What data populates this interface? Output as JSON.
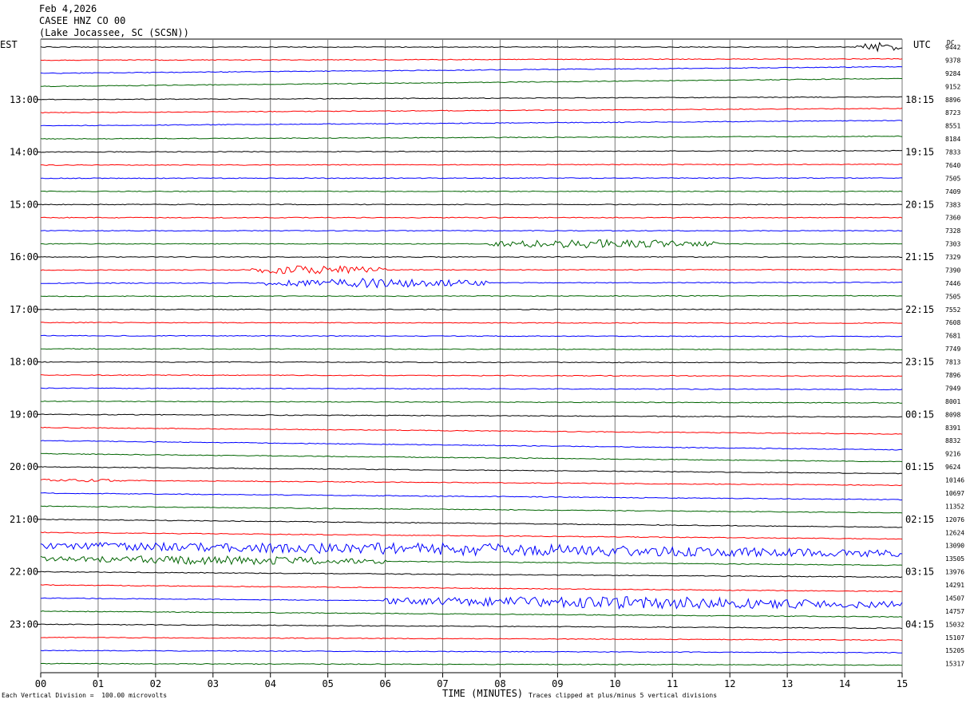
{
  "header": {
    "date": "Feb 4,2026",
    "station": "CASEE HNZ CO 00",
    "location": "(Lake Jocassee, SC (SCSN))"
  },
  "labels": {
    "left_timezone": "EST",
    "right_timezone": "UTC",
    "dc_label": "DC",
    "xlabel": "TIME (MINUTES)",
    "division_note": "Each Vertical Division =  100.00 microvolts",
    "clip_note": "Traces clipped at plus/minus 5 vertical divisions"
  },
  "chart_data": {
    "type": "line",
    "xlabel": "TIME (MINUTES)",
    "x_ticks": [
      "00",
      "01",
      "02",
      "03",
      "04",
      "05",
      "06",
      "07",
      "08",
      "09",
      "10",
      "11",
      "12",
      "13",
      "14",
      "15"
    ],
    "xlim": [
      0,
      15
    ],
    "grid": true,
    "trace_colors": [
      "#000000",
      "#ff0000",
      "#0000ff",
      "#006400"
    ],
    "est_hour_labels": [
      "13:00",
      "14:00",
      "15:00",
      "16:00",
      "17:00",
      "18:00",
      "19:00",
      "20:00",
      "21:00",
      "22:00",
      "23:00"
    ],
    "utc_hour_labels": [
      "18:15",
      "19:15",
      "20:15",
      "21:15",
      "22:15",
      "23:15",
      "00:15",
      "01:15",
      "02:15",
      "03:15",
      "04:15"
    ],
    "dc_values": [
      "9442",
      "9378",
      "9284",
      "9152",
      "8896",
      "8723",
      "8551",
      "8184",
      "7833",
      "7640",
      "7505",
      "7409",
      "7383",
      "7360",
      "7328",
      "7303",
      "7329",
      "7390",
      "7446",
      "7505",
      "7552",
      "7608",
      "7681",
      "7749",
      "7813",
      "7896",
      "7949",
      "8001",
      "8098",
      "8391",
      "8832",
      "9216",
      "9624",
      "10146",
      "10697",
      "11352",
      "12076",
      "12624",
      "13090",
      "13505",
      "13976",
      "14291",
      "14507",
      "14757",
      "15032",
      "15107",
      "15205",
      "15317"
    ],
    "trace_drift_divisions": [
      0,
      0.5,
      2.5,
      3,
      1,
      1.6,
      2,
      1,
      0.5,
      0.3,
      0.1,
      0,
      0,
      0,
      0,
      0,
      0,
      0.2,
      0.3,
      0.2,
      0,
      -0.2,
      -0.3,
      -0.3,
      -0.3,
      -0.4,
      -0.5,
      -0.6,
      -1,
      -2.5,
      -3.5,
      -3,
      -2.5,
      -2,
      -2.5,
      -2.5,
      -3,
      -2.5,
      -3,
      -2.5,
      -2,
      -2.5,
      -2.5,
      -2.2,
      -1.5,
      -1,
      -0.8,
      -0.5
    ],
    "events": [
      {
        "trace": 0,
        "start_min": 14.2,
        "end_min": 15.0,
        "amplitude_div": 3
      },
      {
        "trace": 15,
        "start_min": 7.8,
        "end_min": 11.8,
        "amplitude_div": 3
      },
      {
        "trace": 17,
        "start_min": 3.5,
        "end_min": 6.0,
        "amplitude_div": 3
      },
      {
        "trace": 18,
        "start_min": 3.9,
        "end_min": 7.8,
        "amplitude_div": 3
      },
      {
        "trace": 33,
        "start_min": 0.0,
        "end_min": 1.5,
        "amplitude_div": 1
      },
      {
        "trace": 38,
        "start_min": 0.0,
        "end_min": 15.0,
        "amplitude_div": 4
      },
      {
        "trace": 39,
        "start_min": 0.0,
        "end_min": 6.0,
        "amplitude_div": 3
      },
      {
        "trace": 42,
        "start_min": 6.0,
        "end_min": 15.0,
        "amplitude_div": 4
      }
    ]
  }
}
